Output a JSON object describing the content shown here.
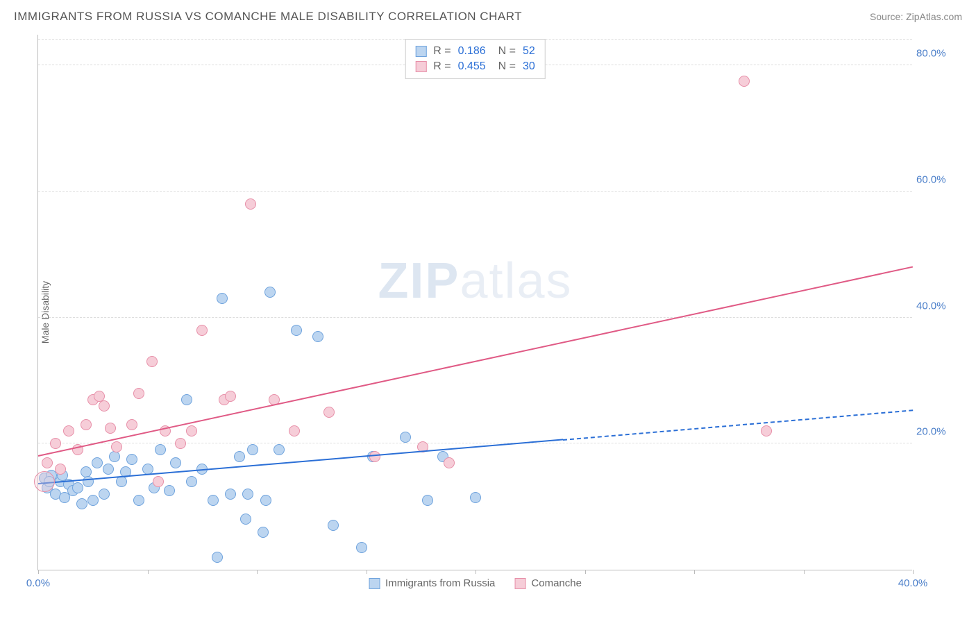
{
  "header": {
    "title": "IMMIGRANTS FROM RUSSIA VS COMANCHE MALE DISABILITY CORRELATION CHART",
    "source_prefix": "Source: ",
    "source_name": "ZipAtlas.com"
  },
  "watermark": {
    "part1": "ZIP",
    "part2": "atlas"
  },
  "chart": {
    "type": "scatter",
    "ylabel": "Male Disability",
    "xlim": [
      0,
      40
    ],
    "ylim": [
      0,
      85
    ],
    "x_ticks": [
      0,
      5,
      10,
      15,
      20,
      25,
      30,
      35,
      40
    ],
    "x_tick_labels": {
      "0": "0.0%",
      "40": "40.0%"
    },
    "y_ticks": [
      20,
      40,
      60,
      80
    ],
    "y_tick_labels": {
      "20": "20.0%",
      "40": "40.0%",
      "60": "60.0%",
      "80": "80.0%"
    },
    "background_color": "#ffffff",
    "grid_color": "#dddddd",
    "axis_color": "#bbbbbb",
    "tick_label_color": "#4a7ec9",
    "marker_radius": 8,
    "series": [
      {
        "key": "russia",
        "label": "Immigrants from Russia",
        "fill": "#bcd5f0",
        "stroke": "#6fa3dd",
        "line_color": "#2b6fd6",
        "R": "0.186",
        "N": "52",
        "trend": {
          "x1": 0,
          "y1": 13.5,
          "x2": 24,
          "y2": 20.5,
          "dash_to_x": 40,
          "dash_to_y": 25.2
        },
        "points": [
          [
            0.3,
            14.5
          ],
          [
            0.4,
            13
          ],
          [
            0.6,
            15
          ],
          [
            0.8,
            12
          ],
          [
            1.0,
            14
          ],
          [
            1.2,
            11.5
          ],
          [
            1.4,
            13.5
          ],
          [
            1.6,
            12.5
          ],
          [
            1.8,
            13
          ],
          [
            2.0,
            10.5
          ],
          [
            2.2,
            15.5
          ],
          [
            2.5,
            11
          ],
          [
            2.7,
            17
          ],
          [
            3.0,
            12
          ],
          [
            3.2,
            16
          ],
          [
            3.5,
            18
          ],
          [
            3.8,
            14
          ],
          [
            4.0,
            15.5
          ],
          [
            4.3,
            17.5
          ],
          [
            4.6,
            11
          ],
          [
            5.0,
            16
          ],
          [
            5.3,
            13
          ],
          [
            5.6,
            19
          ],
          [
            6.0,
            12.5
          ],
          [
            6.3,
            17
          ],
          [
            6.8,
            27
          ],
          [
            7.0,
            14
          ],
          [
            7.5,
            16
          ],
          [
            8.0,
            11
          ],
          [
            8.2,
            2
          ],
          [
            8.4,
            43
          ],
          [
            8.8,
            12
          ],
          [
            9.2,
            18
          ],
          [
            9.5,
            8
          ],
          [
            9.6,
            12
          ],
          [
            9.8,
            19
          ],
          [
            10.3,
            6
          ],
          [
            10.4,
            11
          ],
          [
            10.6,
            44
          ],
          [
            11.0,
            19
          ],
          [
            11.8,
            38
          ],
          [
            12.8,
            37
          ],
          [
            13.5,
            7
          ],
          [
            14.8,
            3.5
          ],
          [
            15.3,
            18
          ],
          [
            16.8,
            21
          ],
          [
            17.8,
            11
          ],
          [
            18.5,
            18
          ],
          [
            20.0,
            11.5
          ],
          [
            0.5,
            14
          ],
          [
            1.1,
            15
          ],
          [
            2.3,
            14
          ]
        ]
      },
      {
        "key": "comanche",
        "label": "Comanche",
        "fill": "#f6cdd8",
        "stroke": "#e78fa8",
        "line_color": "#e05a85",
        "R": "0.455",
        "N": "30",
        "trend": {
          "x1": 0,
          "y1": 18,
          "x2": 40,
          "y2": 48
        },
        "points": [
          [
            0.4,
            17
          ],
          [
            0.8,
            20
          ],
          [
            1.0,
            16
          ],
          [
            1.4,
            22
          ],
          [
            1.8,
            19
          ],
          [
            2.2,
            23
          ],
          [
            2.5,
            27
          ],
          [
            2.8,
            27.5
          ],
          [
            3.0,
            26
          ],
          [
            3.3,
            22.5
          ],
          [
            3.6,
            19.5
          ],
          [
            4.3,
            23
          ],
          [
            4.6,
            28
          ],
          [
            5.2,
            33
          ],
          [
            5.5,
            14
          ],
          [
            5.8,
            22
          ],
          [
            6.5,
            20
          ],
          [
            7.0,
            22
          ],
          [
            7.5,
            38
          ],
          [
            8.5,
            27
          ],
          [
            8.8,
            27.5
          ],
          [
            9.7,
            58
          ],
          [
            10.8,
            27
          ],
          [
            11.7,
            22
          ],
          [
            13.3,
            25
          ],
          [
            15.4,
            18
          ],
          [
            17.6,
            19.5
          ],
          [
            18.8,
            17
          ],
          [
            32.3,
            77.5
          ],
          [
            33.3,
            22
          ]
        ]
      }
    ]
  },
  "legend_top": {
    "r_label": "R =",
    "n_label": "N ="
  }
}
